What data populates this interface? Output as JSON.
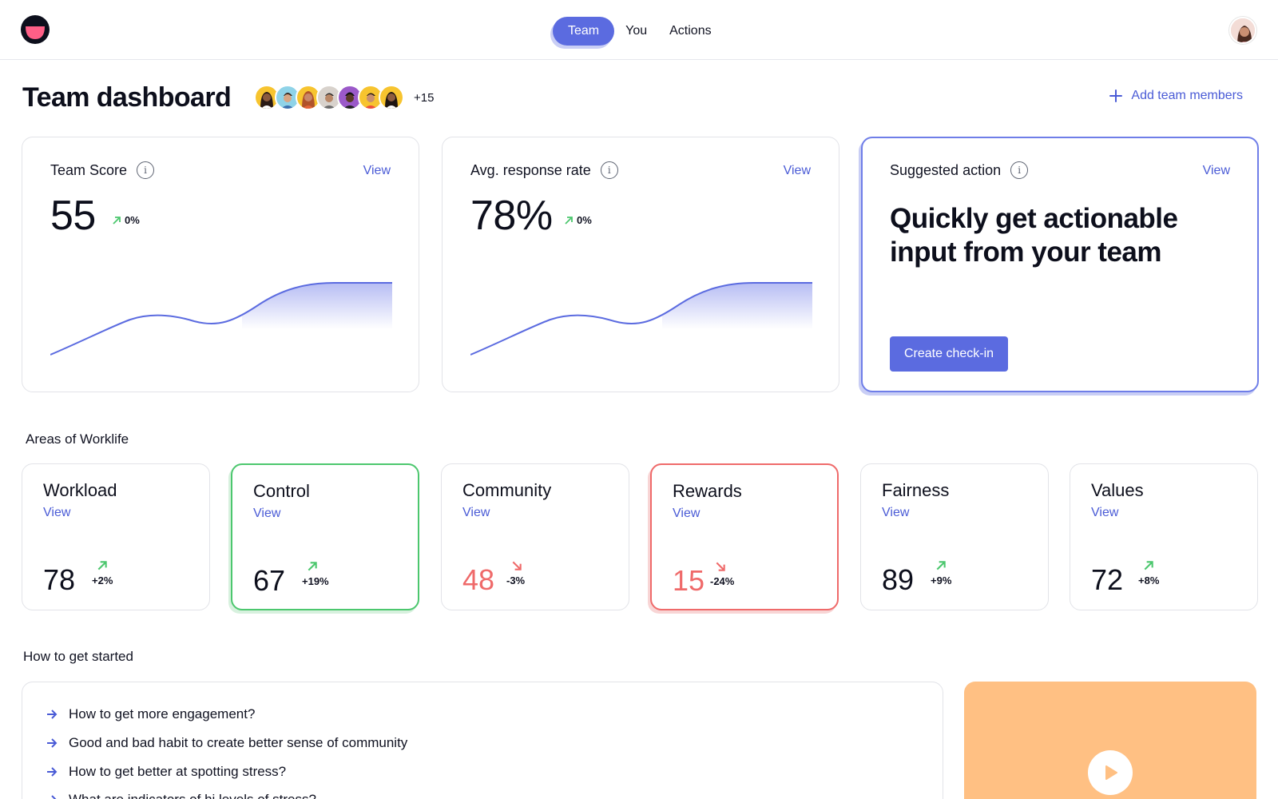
{
  "nav": {
    "tabs": [
      {
        "label": "Team",
        "active": true
      },
      {
        "label": "You",
        "active": false
      },
      {
        "label": "Actions",
        "active": false
      }
    ]
  },
  "header": {
    "title": "Team dashboard",
    "extra_members": "+15",
    "add_members_label": "Add team members"
  },
  "cards": {
    "team_score": {
      "title": "Team Score",
      "view": "View",
      "value": "55",
      "trend": "0%"
    },
    "response_rate": {
      "title": "Avg. response rate",
      "view": "View",
      "value": "78%",
      "trend": "0%"
    },
    "suggested": {
      "title": "Suggested action",
      "view": "View",
      "headline": "Quickly get actionable input from your team",
      "button": "Create check-in"
    }
  },
  "areas": {
    "section_label": "Areas of Worklife",
    "items": [
      {
        "name": "Workload",
        "view": "View",
        "score": "78",
        "delta": "+2%",
        "direction": "up",
        "status": "neutral"
      },
      {
        "name": "Control",
        "view": "View",
        "score": "67",
        "delta": "+19%",
        "direction": "up",
        "status": "good"
      },
      {
        "name": "Community",
        "view": "View",
        "score": "48",
        "delta": "-3%",
        "direction": "down",
        "status": "neutral"
      },
      {
        "name": "Rewards",
        "view": "View",
        "score": "15",
        "delta": "-24%",
        "direction": "down",
        "status": "bad"
      },
      {
        "name": "Fairness",
        "view": "View",
        "score": "89",
        "delta": "+9%",
        "direction": "up",
        "status": "neutral"
      },
      {
        "name": "Values",
        "view": "View",
        "score": "72",
        "delta": "+8%",
        "direction": "up",
        "status": "neutral"
      }
    ]
  },
  "started": {
    "section_label": "How to get started",
    "items": [
      "How to get more engagement?",
      "Good and bad habit to create better sense of community",
      "How to get better at spotting stress?",
      "What are indicators of hi levels of stress?"
    ]
  },
  "colors": {
    "accent": "#5b6be0",
    "positive": "#4cc76e",
    "negative": "#ef6a6a",
    "video_bg": "#ffc083"
  }
}
